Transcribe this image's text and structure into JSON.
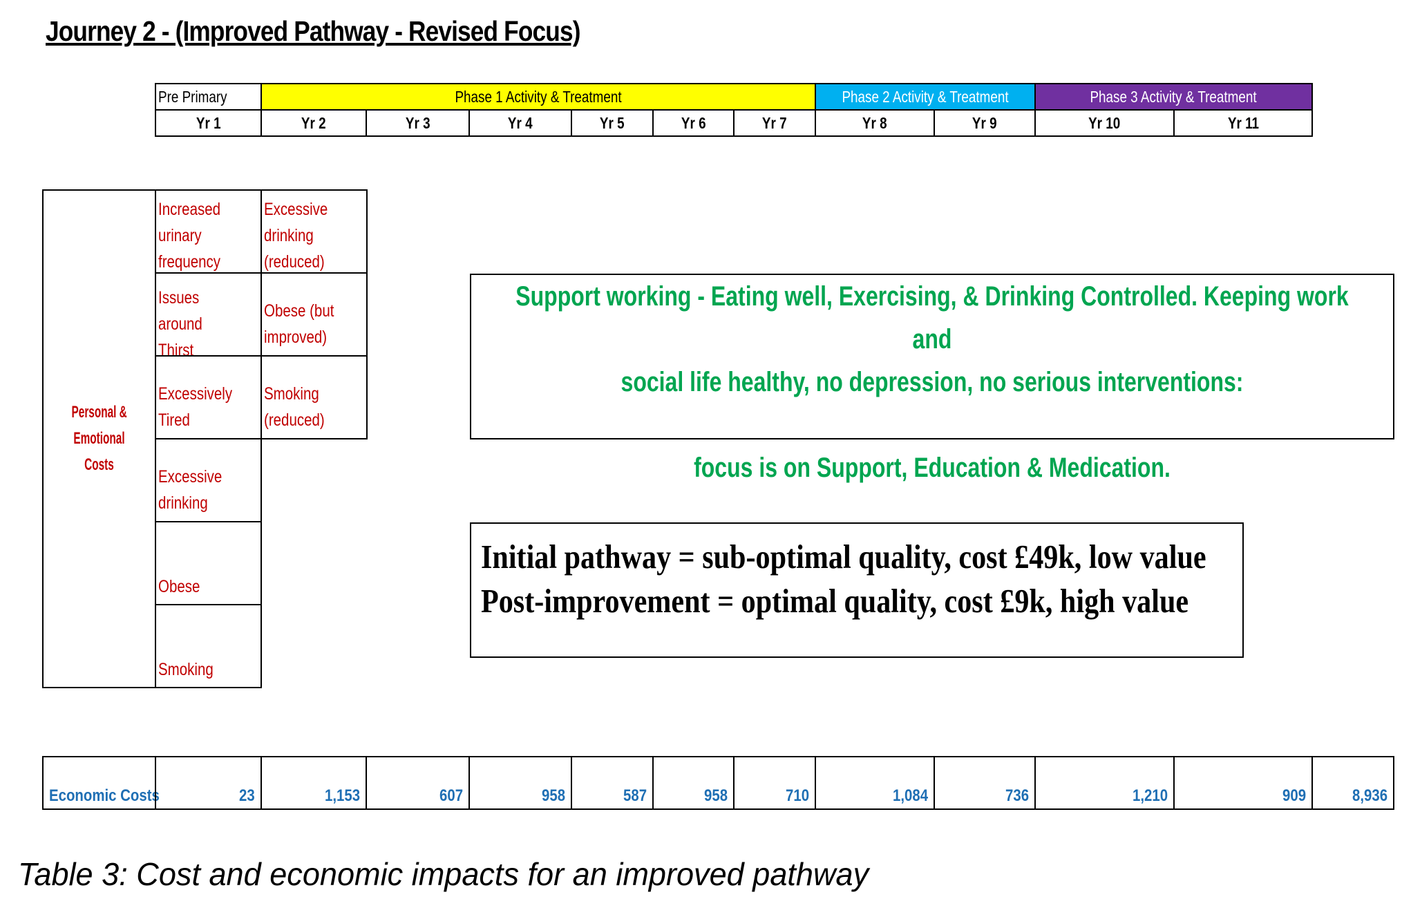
{
  "title": "Journey 2 - (Improved Pathway - Revised Focus)",
  "timeline": {
    "phases": [
      {
        "label": "Pre Primary",
        "color": "#ffffff",
        "text_color": "#000000"
      },
      {
        "label": "Phase 1 Activity & Treatment",
        "color": "#ffff00",
        "text_color": "#000000"
      },
      {
        "label": "Phase 2 Activity & Treatment",
        "color": "#00b0f0",
        "text_color": "#ffffff"
      },
      {
        "label": "Phase 3 Activity & Treatment",
        "color": "#7030a0",
        "text_color": "#ffffff"
      }
    ],
    "years": [
      "Yr 1",
      "Yr 2",
      "Yr 3",
      "Yr 4",
      "Yr 5",
      "Yr 6",
      "Yr 7",
      "Yr 8",
      "Yr 9",
      "Yr 10",
      "Yr 11"
    ]
  },
  "personal": {
    "label_line1": "Personal &",
    "label_line2": "Emotional Costs",
    "col1": [
      "Increased\nurinary\nfrequency",
      "Issues around\nThirst",
      "Excessively\nTired",
      "Excessive\ndrinking",
      "Obese",
      "Smoking"
    ],
    "col2": [
      "Excessive\ndrinking\n(reduced)",
      "Obese (but\nimproved)",
      "Smoking\n(reduced)"
    ]
  },
  "support_box": {
    "line1": "Support working - Eating well, Exercising, & Drinking Controlled. Keeping work and",
    "line2": "social life healthy, no depression, no serious interventions:",
    "line3": "focus is on Support, Education & Medication.",
    "color": "#00a550"
  },
  "pathway_box": {
    "line1": "Initial pathway = sub-optimal quality, cost £49k, low value",
    "line2": "Post-improvement = optimal quality, cost £9k, high value"
  },
  "economic": {
    "label": "Economic Costs",
    "values": [
      "23",
      "1,153",
      "607",
      "958",
      "587",
      "958",
      "710",
      "1,084",
      "736",
      "1,210",
      "909"
    ],
    "total": "8,936",
    "color": "#1f6fb4"
  },
  "caption": "Table 3: Cost and economic impacts for an improved pathway"
}
